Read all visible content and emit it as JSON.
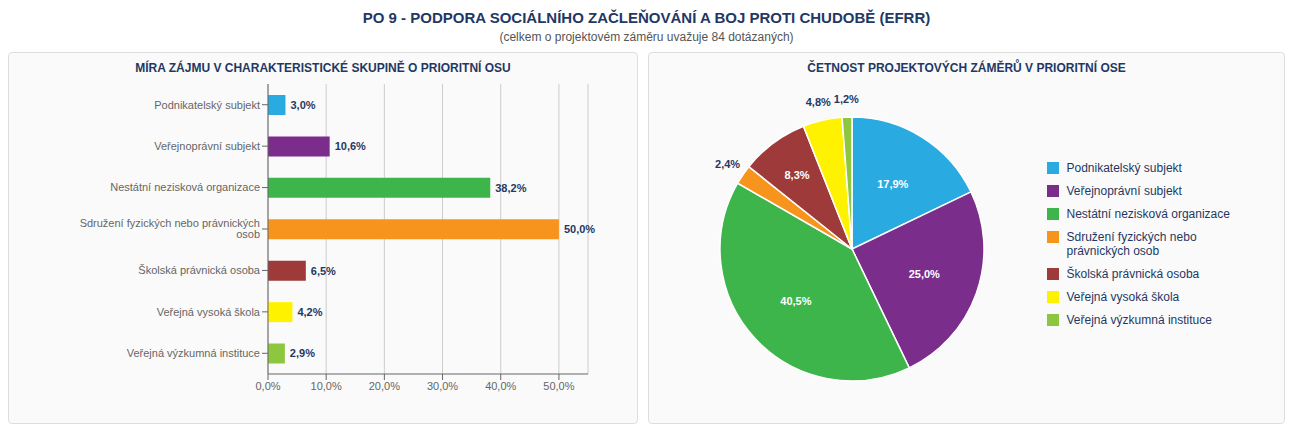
{
  "title": "PO 9 - PODPORA SOCIÁLNÍHO ZAČLEŇOVÁNÍ A BOJ PROTI CHUDOBĚ (EFRR)",
  "subtitle": "(celkem o projektovém záměru uvažuje 84 dotázaných)",
  "chart_data": [
    {
      "type": "bar",
      "orientation": "horizontal",
      "title": "MÍRA ZÁJMU V CHARAKTERISTICKÉ SKUPINĚ O PRIORITNÍ OSU",
      "categories": [
        "Podnikatelský subjekt",
        "Veřejnoprávní subjekt",
        "Nestátní nezisková organizace",
        "Sdružení fyzických nebo právnických osob",
        "Školská právnická osoba",
        "Veřejná vysoká škola",
        "Veřejná výzkumná instituce"
      ],
      "values": [
        3.0,
        10.6,
        38.2,
        50.0,
        6.5,
        4.2,
        2.9
      ],
      "value_labels": [
        "3,0%",
        "10,6%",
        "38,2%",
        "50,0%",
        "6,5%",
        "4,2%",
        "2,9%"
      ],
      "colors": [
        "#29ABE2",
        "#7B2D8B",
        "#3DB54A",
        "#F7941D",
        "#9E3A3A",
        "#FFF200",
        "#8DC63F"
      ],
      "xlim": [
        0,
        55
      ],
      "xticks": [
        {
          "value": 0,
          "label": "0,0%"
        },
        {
          "value": 10,
          "label": "10,0%"
        },
        {
          "value": 20,
          "label": "20,0%"
        },
        {
          "value": 30,
          "label": "30,0%"
        },
        {
          "value": 40,
          "label": "40,0%"
        },
        {
          "value": 50,
          "label": "50,0%"
        }
      ],
      "grid": true,
      "data_labels": true
    },
    {
      "type": "pie",
      "title": "ČETNOST PROJEKTOVÝCH ZÁMĚRŮ V PRIORITNÍ OSE",
      "categories": [
        "Podnikatelský subjekt",
        "Veřejnoprávní subjekt",
        "Nestátní nezisková organizace",
        "Sdružení fyzických nebo\nprávnických osob",
        "Školská právnická osoba",
        "Veřejná vysoká škola",
        "Veřejná výzkumná instituce"
      ],
      "values": [
        17.9,
        25.0,
        40.5,
        2.4,
        8.3,
        4.8,
        1.2
      ],
      "value_labels": [
        "17,9%",
        "25,0%",
        "40,5%",
        "2,4%",
        "8,3%",
        "4,8%",
        "1,2%"
      ],
      "colors": [
        "#29ABE2",
        "#7B2D8B",
        "#3DB54A",
        "#F7941D",
        "#9E3A3A",
        "#FFF200",
        "#8DC63F"
      ],
      "legend": "right",
      "data_labels": true
    }
  ]
}
